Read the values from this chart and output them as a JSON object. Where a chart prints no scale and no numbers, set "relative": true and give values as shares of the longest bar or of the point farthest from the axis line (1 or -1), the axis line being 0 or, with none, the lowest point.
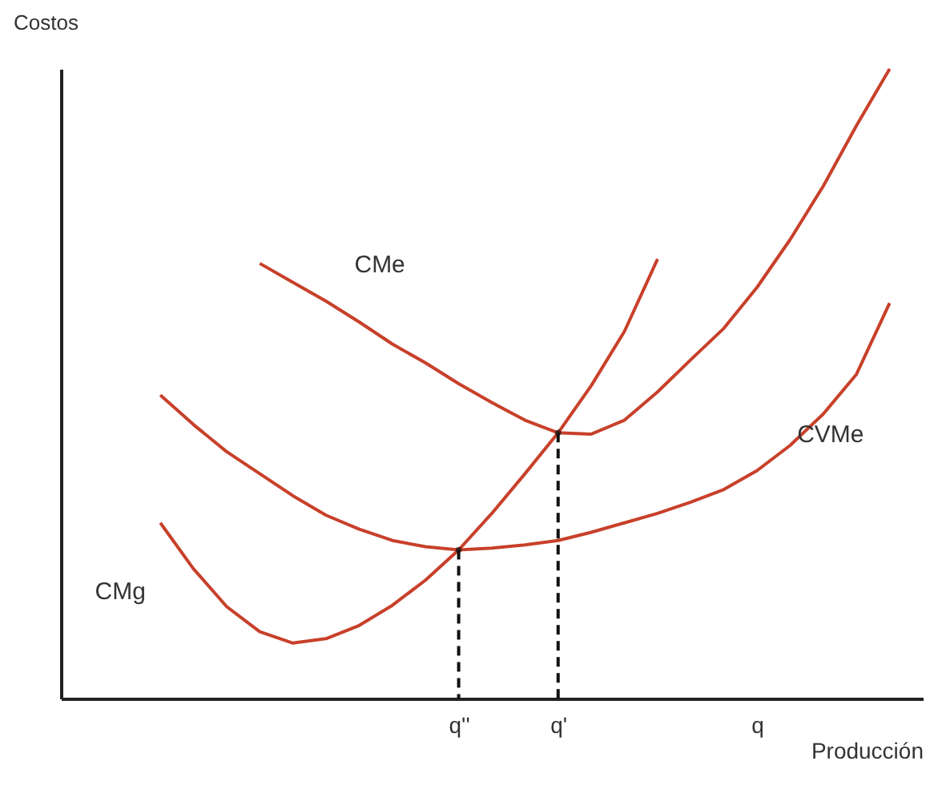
{
  "chart_data": {
    "type": "line",
    "relative": true,
    "xlabel": "Producción",
    "ylabel": "Costos",
    "tick_labels": "x",
    "grid": false,
    "marker": "none",
    "categories": [
      null,
      null,
      null,
      null,
      null,
      null,
      null,
      null,
      null,
      null,
      null,
      null,
      "q''",
      null,
      null,
      "q'",
      null,
      null,
      null,
      null,
      null,
      "q",
      null,
      null,
      null,
      null,
      null
    ],
    "series": [
      {
        "color": "#c8402a",
        "line_style": "solid",
        "values": [
          null,
          null,
          null,
          null,
          null,
          null,
          0.691,
          0.661,
          0.631,
          0.598,
          0.563,
          0.533,
          0.5,
          0.47,
          0.442,
          0.422,
          0.42,
          0.442,
          0.487,
          0.538,
          0.588,
          0.653,
          0.729,
          0.814,
          0.91,
          1.0,
          null
        ]
      },
      {
        "color": "#c8402a",
        "line_style": "solid",
        "values": [
          null,
          null,
          null,
          0.482,
          0.435,
          0.392,
          0.357,
          0.322,
          0.291,
          0.269,
          0.251,
          0.241,
          0.236,
          0.239,
          0.244,
          0.251,
          0.264,
          0.279,
          0.294,
          0.312,
          0.332,
          0.362,
          0.402,
          0.452,
          0.515,
          0.628,
          null
        ]
      },
      {
        "color": "#c8402a",
        "line_style": "solid",
        "values": [
          null,
          null,
          null,
          0.279,
          0.206,
          0.146,
          0.106,
          0.088,
          0.095,
          0.116,
          0.148,
          0.188,
          0.236,
          0.294,
          0.357,
          0.422,
          0.497,
          0.583,
          0.698,
          null,
          null,
          null,
          null,
          null,
          null,
          null,
          null
        ]
      },
      {
        "type": "lollipop",
        "color": "#111111",
        "line_style": "dashed",
        "values": [
          null,
          null,
          null,
          null,
          null,
          null,
          null,
          null,
          null,
          null,
          null,
          null,
          0.236,
          null,
          null,
          0.422,
          null,
          null,
          null,
          null,
          null,
          null,
          null,
          null,
          null,
          null,
          null
        ]
      }
    ],
    "annotations": [
      "CMe",
      "CVMe",
      "CMg"
    ]
  }
}
